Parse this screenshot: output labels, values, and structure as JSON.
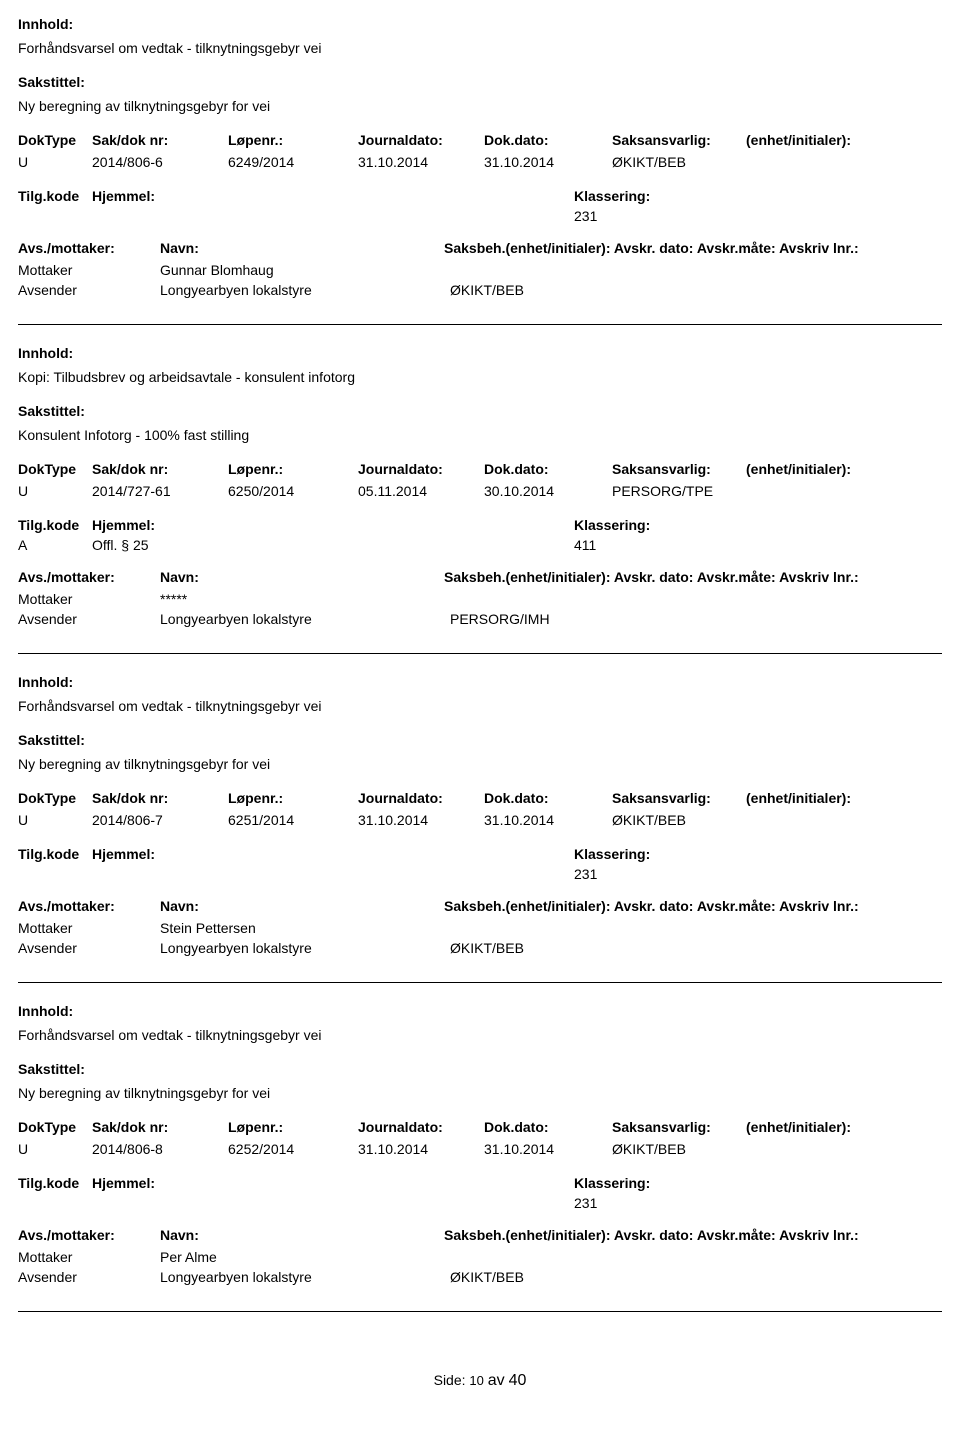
{
  "labels": {
    "innhold": "Innhold:",
    "sakstittel": "Sakstittel:",
    "doktype": "DokType",
    "saknr": "Sak/dok nr:",
    "lopenr": "Løpenr.:",
    "journaldato": "Journaldato:",
    "dokdato": "Dok.dato:",
    "saksansvarlig": "Saksansvarlig:",
    "enhet": "(enhet/initialer):",
    "tilgkode": "Tilg.kode",
    "hjemmel": "Hjemmel:",
    "klassering": "Klassering:",
    "avsmottaker": "Avs./mottaker:",
    "navn": "Navn:",
    "saksbeh_line": "Saksbeh.(enhet/initialer): Avskr. dato:  Avskr.måte:  Avskriv lnr.:",
    "mottaker": "Mottaker",
    "avsender": "Avsender"
  },
  "records": [
    {
      "innhold": "Forhåndsvarsel om vedtak - tilknytningsgebyr vei",
      "sakstittel": "Ny beregning av tilknytningsgebyr for vei",
      "doktype": "U",
      "saknr": "2014/806-6",
      "lopenr": "6249/2014",
      "journaldato": "31.10.2014",
      "dokdato": "31.10.2014",
      "saksansvarlig": "ØKIKT/BEB",
      "tilgkode": "",
      "hjemmel": "",
      "klassering": "231",
      "mottaker_navn": "Gunnar Blomhaug",
      "avsender_navn": "Longyearbyen lokalstyre",
      "avsender_code": "ØKIKT/BEB"
    },
    {
      "innhold": "Kopi: Tilbudsbrev og arbeidsavtale - konsulent infotorg",
      "sakstittel": "Konsulent Infotorg - 100% fast stilling",
      "doktype": "U",
      "saknr": "2014/727-61",
      "lopenr": "6250/2014",
      "journaldato": "05.11.2014",
      "dokdato": "30.10.2014",
      "saksansvarlig": "PERSORG/TPE",
      "tilgkode": "A",
      "hjemmel": "Offl. § 25",
      "klassering": "411",
      "mottaker_navn": "*****",
      "avsender_navn": "Longyearbyen lokalstyre",
      "avsender_code": "PERSORG/IMH"
    },
    {
      "innhold": "Forhåndsvarsel om vedtak - tilknytningsgebyr vei",
      "sakstittel": "Ny beregning av tilknytningsgebyr for vei",
      "doktype": "U",
      "saknr": "2014/806-7",
      "lopenr": "6251/2014",
      "journaldato": "31.10.2014",
      "dokdato": "31.10.2014",
      "saksansvarlig": "ØKIKT/BEB",
      "tilgkode": "",
      "hjemmel": "",
      "klassering": "231",
      "mottaker_navn": "Stein Pettersen",
      "avsender_navn": "Longyearbyen lokalstyre",
      "avsender_code": "ØKIKT/BEB"
    },
    {
      "innhold": "Forhåndsvarsel om vedtak - tilknytningsgebyr vei",
      "sakstittel": "Ny beregning av tilknytningsgebyr for vei",
      "doktype": "U",
      "saknr": "2014/806-8",
      "lopenr": "6252/2014",
      "journaldato": "31.10.2014",
      "dokdato": "31.10.2014",
      "saksansvarlig": "ØKIKT/BEB",
      "tilgkode": "",
      "hjemmel": "",
      "klassering": "231",
      "mottaker_navn": "Per Alme",
      "avsender_navn": "Longyearbyen lokalstyre",
      "avsender_code": "ØKIKT/BEB"
    }
  ],
  "footer": {
    "side": "Side:",
    "page": "10",
    "av": "av",
    "total": "40"
  }
}
